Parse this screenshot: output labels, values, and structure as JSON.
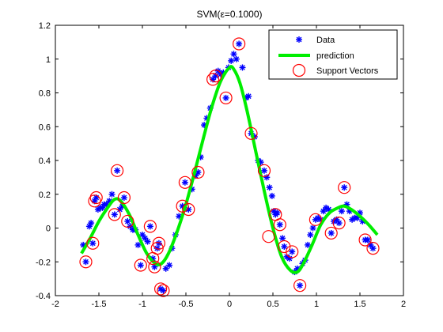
{
  "chart_data": {
    "type": "scatter",
    "title": "SVM(ε=0.1000)",
    "xlabel": "",
    "ylabel": "",
    "xlim": [
      -2,
      2
    ],
    "ylim": [
      -0.4,
      1.2
    ],
    "x_ticks": [
      "-2",
      "-1.5",
      "-1",
      "-0.5",
      "0",
      "0.5",
      "1",
      "1.5",
      "2"
    ],
    "y_ticks": [
      "-0.4",
      "-0.2",
      "0",
      "0.2",
      "0.4",
      "0.6",
      "0.8",
      "1",
      "1.2"
    ],
    "grid": false,
    "legend_position": "top-right",
    "colors": {
      "data": "#0000ff",
      "prediction": "#00ee00",
      "support_vectors": "#ff0000"
    },
    "series": [
      {
        "name": "Data",
        "marker": "asterisk",
        "points": [
          [
            -1.68,
            -0.1
          ],
          [
            -1.65,
            -0.2
          ],
          [
            -1.61,
            0.01
          ],
          [
            -1.59,
            0.03
          ],
          [
            -1.57,
            -0.09
          ],
          [
            -1.55,
            0.16
          ],
          [
            -1.53,
            0.18
          ],
          [
            -1.51,
            0.11
          ],
          [
            -1.48,
            0.12
          ],
          [
            -1.46,
            0.12
          ],
          [
            -1.44,
            0.14
          ],
          [
            -1.41,
            0.14
          ],
          [
            -1.38,
            0.16
          ],
          [
            -1.35,
            0.2
          ],
          [
            -1.32,
            0.08
          ],
          [
            -1.29,
            0.34
          ],
          [
            -1.26,
            0.11
          ],
          [
            -1.23,
            0.13
          ],
          [
            -1.21,
            0.18
          ],
          [
            -1.17,
            0.04
          ],
          [
            -1.14,
            0.01
          ],
          [
            -1.11,
            -0.01
          ],
          [
            -1.08,
            -0.01
          ],
          [
            -1.05,
            -0.1
          ],
          [
            -1.02,
            -0.22
          ],
          [
            -1.0,
            -0.04
          ],
          [
            -0.97,
            -0.06
          ],
          [
            -0.94,
            -0.08
          ],
          [
            -0.91,
            0.01
          ],
          [
            -0.88,
            -0.18
          ],
          [
            -0.86,
            -0.23
          ],
          [
            -0.83,
            -0.12
          ],
          [
            -0.81,
            -0.09
          ],
          [
            -0.79,
            -0.36
          ],
          [
            -0.76,
            -0.37
          ],
          [
            -0.73,
            -0.24
          ],
          [
            -0.69,
            -0.22
          ],
          [
            -0.66,
            -0.12
          ],
          [
            -0.62,
            -0.04
          ],
          [
            -0.58,
            0.07
          ],
          [
            -0.54,
            0.13
          ],
          [
            -0.51,
            0.27
          ],
          [
            -0.47,
            0.11
          ],
          [
            -0.43,
            0.23
          ],
          [
            -0.39,
            0.31
          ],
          [
            -0.36,
            0.33
          ],
          [
            -0.33,
            0.42
          ],
          [
            -0.29,
            0.61
          ],
          [
            -0.26,
            0.65
          ],
          [
            -0.22,
            0.71
          ],
          [
            -0.19,
            0.88
          ],
          [
            -0.16,
            0.9
          ],
          [
            -0.13,
            0.93
          ],
          [
            -0.1,
            0.91
          ],
          [
            -0.07,
            0.92
          ],
          [
            -0.04,
            0.77
          ],
          [
            -0.01,
            0.95
          ],
          [
            0.02,
            0.99
          ],
          [
            0.05,
            1.03
          ],
          [
            0.08,
            1.0
          ],
          [
            0.11,
            1.09
          ],
          [
            0.15,
            0.95
          ],
          [
            0.19,
            0.77
          ],
          [
            0.22,
            0.78
          ],
          [
            0.25,
            0.56
          ],
          [
            0.29,
            0.54
          ],
          [
            0.33,
            0.4
          ],
          [
            0.36,
            0.39
          ],
          [
            0.4,
            0.34
          ],
          [
            0.43,
            0.3
          ],
          [
            0.46,
            0.24
          ],
          [
            0.49,
            0.19
          ],
          [
            0.51,
            0.1
          ],
          [
            0.53,
            0.08
          ],
          [
            0.55,
            0.09
          ],
          [
            0.58,
            0.02
          ],
          [
            0.61,
            -0.06
          ],
          [
            0.63,
            -0.11
          ],
          [
            0.66,
            -0.17
          ],
          [
            0.69,
            -0.18
          ],
          [
            0.72,
            -0.14
          ],
          [
            0.75,
            -0.26
          ],
          [
            0.78,
            -0.24
          ],
          [
            0.81,
            -0.34
          ],
          [
            0.84,
            -0.21
          ],
          [
            0.87,
            -0.19
          ],
          [
            0.9,
            -0.1
          ],
          [
            0.93,
            -0.04
          ],
          [
            0.96,
            0.0
          ],
          [
            0.99,
            0.05
          ],
          [
            1.02,
            0.06
          ],
          [
            1.05,
            0.05
          ],
          [
            1.08,
            0.1
          ],
          [
            1.11,
            0.12
          ],
          [
            1.14,
            0.11
          ],
          [
            1.17,
            -0.03
          ],
          [
            1.2,
            0.04
          ],
          [
            1.23,
            0.05
          ],
          [
            1.26,
            0.03
          ],
          [
            1.29,
            0.1
          ],
          [
            1.32,
            0.24
          ],
          [
            1.35,
            0.14
          ],
          [
            1.38,
            0.1
          ],
          [
            1.41,
            0.05
          ],
          [
            1.44,
            0.06
          ],
          [
            1.47,
            0.06
          ],
          [
            1.5,
            0.09
          ],
          [
            1.53,
            0.04
          ],
          [
            1.56,
            -0.07
          ],
          [
            1.59,
            -0.07
          ],
          [
            1.62,
            -0.1
          ],
          [
            1.65,
            -0.12
          ]
        ]
      },
      {
        "name": "prediction",
        "marker": "line",
        "points": [
          [
            -1.7,
            -0.15
          ],
          [
            -1.6,
            -0.06
          ],
          [
            -1.5,
            0.04
          ],
          [
            -1.4,
            0.12
          ],
          [
            -1.32,
            0.17
          ],
          [
            -1.25,
            0.16
          ],
          [
            -1.15,
            0.08
          ],
          [
            -1.05,
            -0.04
          ],
          [
            -0.95,
            -0.15
          ],
          [
            -0.85,
            -0.21
          ],
          [
            -0.78,
            -0.21
          ],
          [
            -0.7,
            -0.15
          ],
          [
            -0.6,
            -0.02
          ],
          [
            -0.5,
            0.14
          ],
          [
            -0.4,
            0.33
          ],
          [
            -0.3,
            0.53
          ],
          [
            -0.2,
            0.72
          ],
          [
            -0.1,
            0.87
          ],
          [
            0.0,
            0.95
          ],
          [
            0.05,
            0.94
          ],
          [
            0.12,
            0.86
          ],
          [
            0.2,
            0.7
          ],
          [
            0.3,
            0.46
          ],
          [
            0.4,
            0.22
          ],
          [
            0.5,
            0.0
          ],
          [
            0.6,
            -0.17
          ],
          [
            0.7,
            -0.25
          ],
          [
            0.78,
            -0.26
          ],
          [
            0.85,
            -0.21
          ],
          [
            0.95,
            -0.1
          ],
          [
            1.05,
            0.02
          ],
          [
            1.15,
            0.09
          ],
          [
            1.25,
            0.12
          ],
          [
            1.32,
            0.13
          ],
          [
            1.4,
            0.11
          ],
          [
            1.5,
            0.07
          ],
          [
            1.6,
            0.02
          ],
          [
            1.7,
            -0.04
          ]
        ]
      },
      {
        "name": "Support Vectors",
        "marker": "circle",
        "points": [
          [
            -1.65,
            -0.2
          ],
          [
            -1.57,
            -0.09
          ],
          [
            -1.55,
            0.16
          ],
          [
            -1.53,
            0.18
          ],
          [
            -1.32,
            0.08
          ],
          [
            -1.29,
            0.34
          ],
          [
            -1.21,
            0.18
          ],
          [
            -1.17,
            0.04
          ],
          [
            -1.02,
            -0.22
          ],
          [
            -0.91,
            0.01
          ],
          [
            -0.88,
            -0.18
          ],
          [
            -0.86,
            -0.23
          ],
          [
            -0.83,
            -0.12
          ],
          [
            -0.81,
            -0.09
          ],
          [
            -0.79,
            -0.36
          ],
          [
            -0.76,
            -0.37
          ],
          [
            -0.54,
            0.13
          ],
          [
            -0.51,
            0.27
          ],
          [
            -0.47,
            0.11
          ],
          [
            -0.36,
            0.33
          ],
          [
            -0.19,
            0.88
          ],
          [
            -0.16,
            0.9
          ],
          [
            -0.04,
            0.77
          ],
          [
            0.11,
            1.09
          ],
          [
            0.25,
            0.56
          ],
          [
            0.4,
            0.34
          ],
          [
            0.53,
            0.08
          ],
          [
            0.58,
            0.02
          ],
          [
            0.45,
            -0.05
          ],
          [
            0.63,
            -0.11
          ],
          [
            0.72,
            -0.14
          ],
          [
            0.81,
            -0.34
          ],
          [
            0.99,
            0.05
          ],
          [
            1.17,
            -0.03
          ],
          [
            1.26,
            0.03
          ],
          [
            1.32,
            0.24
          ],
          [
            1.56,
            -0.07
          ],
          [
            1.65,
            -0.12
          ]
        ]
      }
    ]
  }
}
